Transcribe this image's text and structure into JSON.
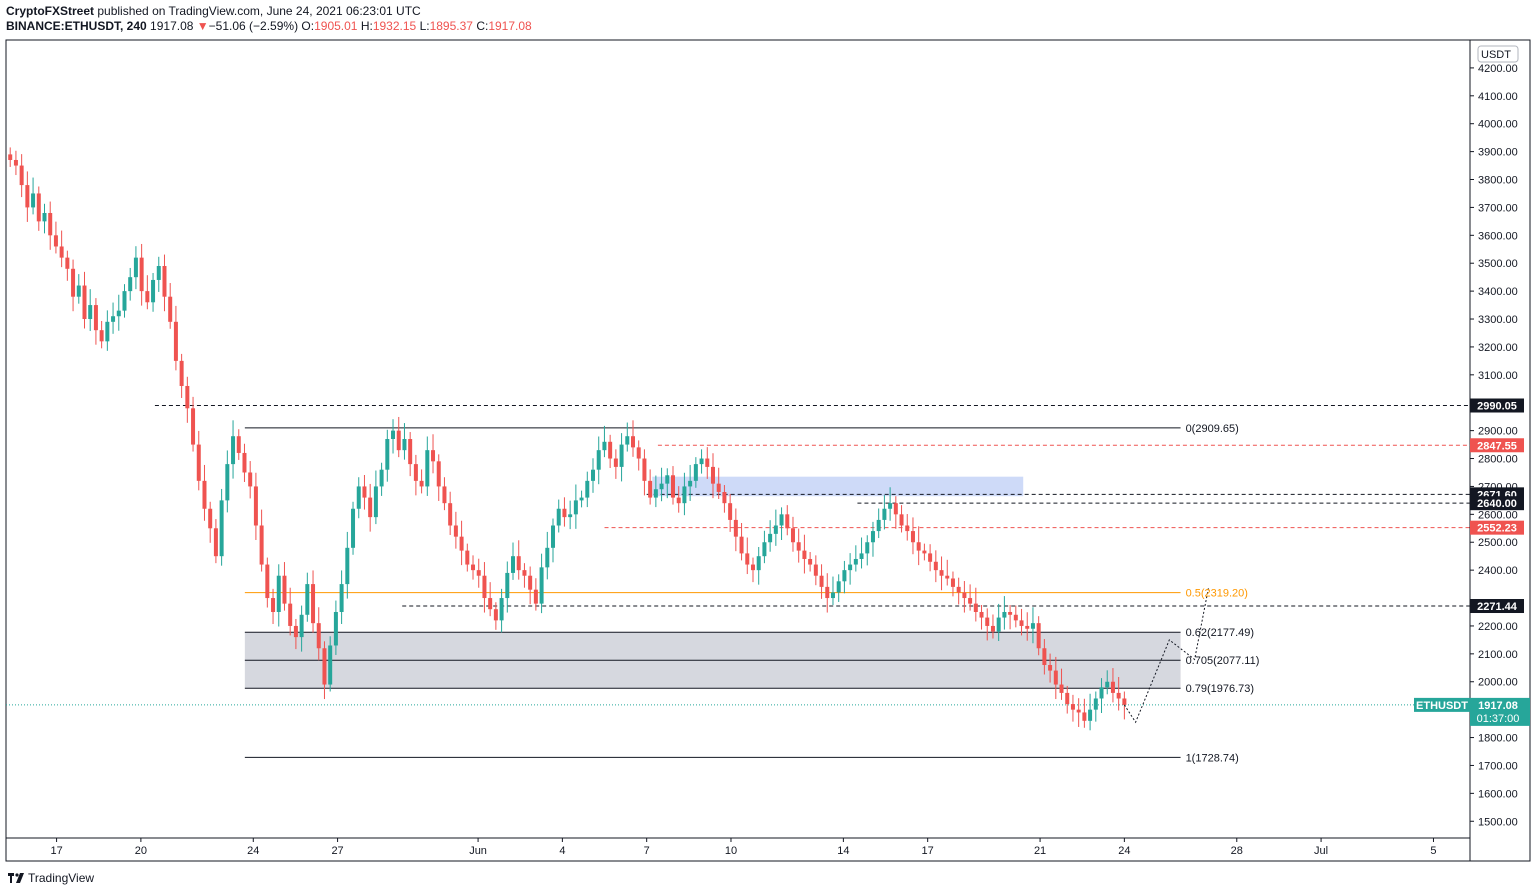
{
  "header": {
    "author": "CryptoFXStreet",
    "published": "published on TradingView.com, June 24, 2021 06:23:01 UTC",
    "symbol": "BINANCE:ETHUSDT, 240",
    "last": "1917.08",
    "change": "−51.06 (−2.59%)",
    "o_label": "O:",
    "o_value": "1905.01",
    "h_label": "H:",
    "h_value": "1932.15",
    "l_label": "L:",
    "l_value": "1895.37",
    "c_label": "C:",
    "c_value": "1917.08"
  },
  "footer": {
    "brand": "TradingView"
  },
  "colors": {
    "up": "#26a69a",
    "down": "#ef5350",
    "fib": "#131722",
    "fib_mid": "#ff9800",
    "zone": "#d1d4dc",
    "blue_zone": "#c5d3f7",
    "pink": "#ef5350"
  },
  "chart_data": {
    "type": "candlestick",
    "currency": "USDT",
    "ylim": [
      1440,
      4300
    ],
    "y_ticks": [
      4200,
      4100,
      4000,
      3900,
      3800,
      3700,
      3600,
      3500,
      3400,
      3300,
      3200,
      3100,
      2900,
      2800,
      2700,
      2600,
      2500,
      2400,
      2200,
      2100,
      2000,
      1800,
      1700,
      1600,
      1500
    ],
    "y_tick_labels": [
      "4200.00",
      "4100.00",
      "4000.00",
      "3900.00",
      "3800.00",
      "3700.00",
      "3600.00",
      "3500.00",
      "3400.00",
      "3300.00",
      "3200.00",
      "3100.00",
      "2900.00",
      "2800.00",
      "2700.00",
      "2600.00",
      "2500.00",
      "2400.00",
      "2200.00",
      "2100.00",
      "2000.00",
      "1800.00",
      "1700.00",
      "1600.00",
      "1500.00"
    ],
    "x_ticks": [
      {
        "day": 17,
        "label": "17"
      },
      {
        "day": 20,
        "label": "20"
      },
      {
        "day": 24,
        "label": "24"
      },
      {
        "day": 27,
        "label": "27"
      },
      {
        "day": 32,
        "label": "Jun"
      },
      {
        "day": 35,
        "label": "4"
      },
      {
        "day": 38,
        "label": "7"
      },
      {
        "day": 41,
        "label": "10"
      },
      {
        "day": 45,
        "label": "14"
      },
      {
        "day": 48,
        "label": "17"
      },
      {
        "day": 52,
        "label": "21"
      },
      {
        "day": 55,
        "label": "24"
      },
      {
        "day": 59,
        "label": "28"
      },
      {
        "day": 62,
        "label": "Jul"
      },
      {
        "day": 66,
        "label": "5"
      }
    ],
    "x_range_days": [
      15.2,
      67.3
    ],
    "price_labels": [
      {
        "value": 2990.05,
        "label": "2990.05",
        "style": "black"
      },
      {
        "value": 2847.55,
        "label": "2847.55",
        "style": "pink"
      },
      {
        "value": 2671.6,
        "label": "2671.60",
        "style": "black"
      },
      {
        "value": 2640.0,
        "label": "2640.00",
        "style": "black"
      },
      {
        "value": 2552.23,
        "label": "2552.23",
        "style": "pink"
      },
      {
        "value": 2271.44,
        "label": "2271.44",
        "style": "black"
      }
    ],
    "current_price": {
      "symbol": "ETHUSDT",
      "value": 1917.08,
      "label": "1917.08",
      "countdown": "01:37:00"
    },
    "fib_levels": [
      {
        "value": 2909.65,
        "label": "0(2909.65)"
      },
      {
        "value": 2319.2,
        "label": "0.5(2319.20)",
        "highlight": true
      },
      {
        "value": 2177.49,
        "label": "0.62(2177.49)"
      },
      {
        "value": 2077.11,
        "label": "0.705(2077.11)"
      },
      {
        "value": 1976.73,
        "label": "0.79(1976.73)"
      },
      {
        "value": 1728.74,
        "label": "1(1728.74)"
      }
    ],
    "fib_x_range_days": [
      23.7,
      57.0
    ],
    "zone": {
      "from": 1976.73,
      "to": 2177.49,
      "x_days": [
        23.7,
        57.0
      ]
    },
    "supply_zone": {
      "from": 2665,
      "to": 2735,
      "x_days": [
        38.2,
        51.4
      ]
    },
    "dashed_levels": [
      {
        "value": 2990.05,
        "from_day": 20.5,
        "color": "black"
      },
      {
        "value": 2847.55,
        "from_day": 38.4,
        "color": "pink"
      },
      {
        "value": 2671.6,
        "from_day": 38.0,
        "color": "black"
      },
      {
        "value": 2640.0,
        "from_day": 45.5,
        "color": "black"
      },
      {
        "value": 2552.23,
        "from_day": 36.5,
        "color": "pink"
      },
      {
        "value": 2271.44,
        "from_day": 29.3,
        "color": "black"
      }
    ],
    "projection_path": [
      [
        55.0,
        1917
      ],
      [
        55.4,
        1855
      ],
      [
        56.6,
        2150
      ],
      [
        57.5,
        2080
      ],
      [
        58.0,
        2340
      ]
    ],
    "candles_close": [
      3870,
      3850,
      3780,
      3700,
      3750,
      3650,
      3680,
      3600,
      3560,
      3520,
      3480,
      3380,
      3420,
      3300,
      3350,
      3260,
      3220,
      3290,
      3310,
      3330,
      3400,
      3450,
      3520,
      3400,
      3360,
      3440,
      3490,
      3380,
      3290,
      3150,
      3060,
      2980,
      2850,
      2720,
      2620,
      2550,
      2450,
      2650,
      2780,
      2880,
      2820,
      2750,
      2700,
      2560,
      2420,
      2300,
      2250,
      2380,
      2280,
      2200,
      2160,
      2240,
      2350,
      2210,
      2120,
      1990,
      2130,
      2250,
      2350,
      2480,
      2620,
      2700,
      2660,
      2590,
      2700,
      2760,
      2870,
      2900,
      2830,
      2870,
      2780,
      2720,
      2700,
      2830,
      2790,
      2700,
      2640,
      2560,
      2520,
      2470,
      2420,
      2400,
      2380,
      2300,
      2260,
      2220,
      2300,
      2390,
      2450,
      2400,
      2380,
      2330,
      2280,
      2410,
      2480,
      2560,
      2620,
      2590,
      2600,
      2650,
      2660,
      2720,
      2760,
      2830,
      2860,
      2800,
      2770,
      2850,
      2880,
      2840,
      2800,
      2720,
      2660,
      2690,
      2710,
      2740,
      2660,
      2640,
      2700,
      2720,
      2780,
      2800,
      2770,
      2710,
      2680,
      2640,
      2580,
      2520,
      2460,
      2420,
      2400,
      2450,
      2500,
      2530,
      2560,
      2600,
      2550,
      2500,
      2470,
      2440,
      2420,
      2380,
      2340,
      2300,
      2320,
      2360,
      2400,
      2420,
      2440,
      2460,
      2500,
      2540,
      2580,
      2620,
      2640,
      2600,
      2560,
      2540,
      2500,
      2470,
      2460,
      2430,
      2400,
      2380,
      2370,
      2340,
      2320,
      2300,
      2280,
      2250,
      2230,
      2200,
      2180,
      2230,
      2250,
      2240,
      2220,
      2200,
      2190,
      2210,
      2120,
      2060,
      2040,
      1990,
      1960,
      1920,
      1900,
      1890,
      1860,
      1900,
      1940,
      1980,
      2000,
      1960,
      1940,
      1917
    ]
  }
}
